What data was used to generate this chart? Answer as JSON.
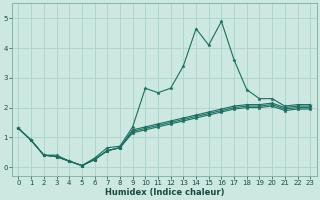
{
  "xlabel": "Humidex (Indice chaleur)",
  "xlim": [
    -0.5,
    23.5
  ],
  "ylim": [
    -0.3,
    5.5
  ],
  "yticks": [
    0,
    1,
    2,
    3,
    4,
    5
  ],
  "xticks": [
    0,
    1,
    2,
    3,
    4,
    5,
    6,
    7,
    8,
    9,
    10,
    11,
    12,
    13,
    14,
    15,
    16,
    17,
    18,
    19,
    20,
    21,
    22,
    23
  ],
  "bg_color": "#cce8e0",
  "line_color": "#1a6e60",
  "grid_color": "#aad4cc",
  "series": [
    [
      1.3,
      0.9,
      0.4,
      0.4,
      0.2,
      0.05,
      0.3,
      0.65,
      0.7,
      1.35,
      2.65,
      2.5,
      2.65,
      3.4,
      4.65,
      4.1,
      4.9,
      3.6,
      2.6,
      2.3,
      2.3,
      2.05,
      2.1,
      2.1
    ],
    [
      1.3,
      0.9,
      0.4,
      0.35,
      0.2,
      0.05,
      0.25,
      0.55,
      0.65,
      1.25,
      1.35,
      1.45,
      1.55,
      1.65,
      1.75,
      1.85,
      1.95,
      2.05,
      2.1,
      2.1,
      2.15,
      2.0,
      2.05,
      2.05
    ],
    [
      1.3,
      0.9,
      0.4,
      0.35,
      0.2,
      0.05,
      0.25,
      0.55,
      0.65,
      1.2,
      1.3,
      1.4,
      1.5,
      1.6,
      1.7,
      1.8,
      1.9,
      2.0,
      2.05,
      2.05,
      2.1,
      1.95,
      2.0,
      2.0
    ],
    [
      1.3,
      0.9,
      0.4,
      0.35,
      0.2,
      0.05,
      0.25,
      0.55,
      0.65,
      1.15,
      1.25,
      1.35,
      1.45,
      1.55,
      1.65,
      1.75,
      1.85,
      1.95,
      2.0,
      2.0,
      2.05,
      1.9,
      1.95,
      1.95
    ]
  ]
}
